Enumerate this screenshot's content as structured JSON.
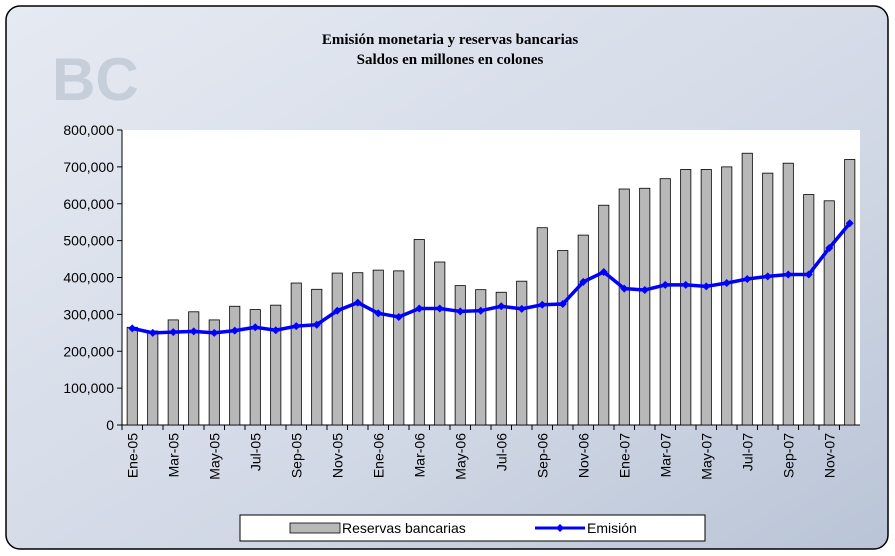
{
  "chart_data": {
    "type": "bar-line",
    "title": "Emisión monetaria y reservas bancarias",
    "subtitle": "Saldos en millones en colones",
    "categories": [
      "Ene-05",
      null,
      "Mar-05",
      null,
      "May-05",
      null,
      "Jul-05",
      null,
      "Sep-05",
      null,
      "Nov-05",
      null,
      "Ene-06",
      null,
      "Mar-06",
      null,
      "May-06",
      null,
      "Jul-06",
      null,
      "Sep-06",
      null,
      "Nov-06",
      null,
      "Ene-07",
      null,
      "Mar-07",
      null,
      "May-07",
      null,
      "Jul-07",
      null,
      "Sep-07",
      null,
      "Nov-07",
      null
    ],
    "series": [
      {
        "name": "Reservas bancarias",
        "type": "bar",
        "color": "#b8b8b8",
        "values": [
          265000,
          255000,
          285000,
          307000,
          285000,
          322000,
          313000,
          325000,
          385000,
          368000,
          412000,
          413000,
          420000,
          418000,
          503000,
          442000,
          378000,
          367000,
          360000,
          390000,
          535000,
          473000,
          515000,
          596000,
          640000,
          642000,
          668000,
          693000,
          693000,
          700000,
          737000,
          683000,
          710000,
          625000,
          608000,
          720000
        ]
      },
      {
        "name": "Emisión",
        "type": "line",
        "color": "#0000ff",
        "values": [
          262000,
          250000,
          252000,
          254000,
          250000,
          256000,
          265000,
          257000,
          268000,
          272000,
          310000,
          332000,
          303000,
          293000,
          316000,
          316000,
          308000,
          310000,
          322000,
          315000,
          326000,
          328000,
          388000,
          415000,
          370000,
          366000,
          380000,
          380000,
          376000,
          385000,
          396000,
          403000,
          408000,
          408000,
          480000,
          547000
        ]
      }
    ],
    "ylim": [
      0,
      800000
    ],
    "yticks": [
      0,
      {
        "value": 100000,
        "label": "100,000"
      },
      {
        "value": 200000,
        "label": "200,000"
      },
      {
        "value": 300000,
        "label": "300,000"
      },
      {
        "value": 400000,
        "label": "400,000"
      },
      {
        "value": 500000,
        "label": "500,000"
      },
      {
        "value": 600000,
        "label": "600,000"
      },
      {
        "value": 700000,
        "label": "700,000"
      },
      {
        "value": 800000,
        "label": "800,000"
      }
    ],
    "grid": false,
    "legend": "bottom"
  }
}
